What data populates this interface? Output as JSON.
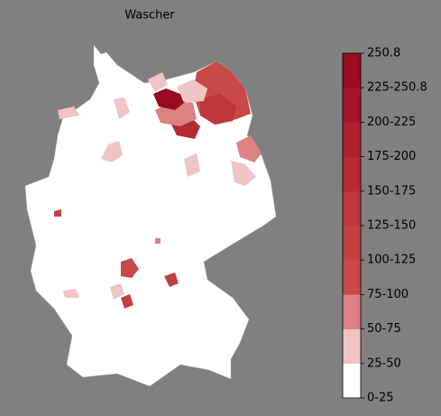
{
  "title": "Wascher",
  "colorbar": {
    "labels": [
      "0-25",
      "25-50",
      "50-75",
      "75-100",
      "100-125",
      "125-150",
      "150-175",
      "175-200",
      "200-225",
      "225-250.8",
      "250.8"
    ],
    "colors": [
      "#ffffff",
      "#f0c4c4",
      "#dc8282",
      "#c94848",
      "#c4403f",
      "#be363a",
      "#b62a33",
      "#ad202d",
      "#a31627",
      "#980a20"
    ]
  }
}
